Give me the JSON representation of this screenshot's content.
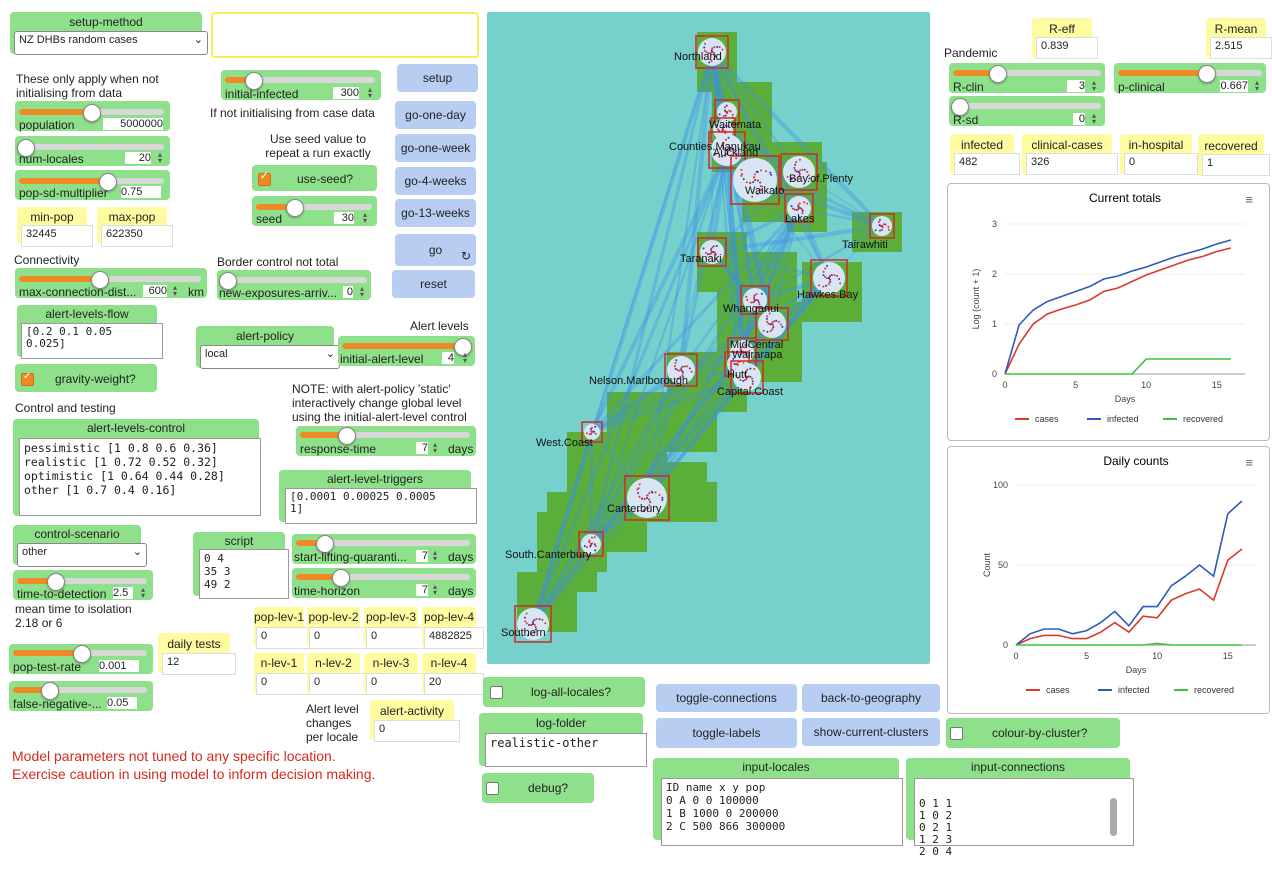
{
  "setup_method": {
    "label": "setup-method",
    "value": "NZ DHBs random cases"
  },
  "note_not_init": "These only apply when not initialising from data",
  "population": {
    "label": "population",
    "value": "5000000"
  },
  "num_locales": {
    "label": "num-locales",
    "value": "20"
  },
  "pop_sd": {
    "label": "pop-sd-multiplier",
    "value": "0.75"
  },
  "min_pop": {
    "label": "min-pop",
    "value": "32445"
  },
  "max_pop": {
    "label": "max-pop",
    "value": "622350"
  },
  "connectivity": "Connectivity",
  "max_conn": {
    "label": "max-connection-dist...",
    "value": "600",
    "unit": "km"
  },
  "alert_levels_flow": {
    "label": "alert-levels-flow",
    "value": "[0.2 0.1 0.05\n0.025]"
  },
  "gravity": {
    "label": "gravity-weight?"
  },
  "control_testing": "Control and testing",
  "alert_levels_control": {
    "label": "alert-levels-control",
    "value": "pessimistic [1 0.8 0.6 0.36]\nrealistic [1 0.72 0.52 0.32]\noptimistic [1 0.64 0.44 0.28]\nother [1 0.7 0.4 0.16]"
  },
  "control_scenario": {
    "label": "control-scenario",
    "value": "other"
  },
  "time_to_detection": {
    "label": "time-to-detection",
    "value": "2.5"
  },
  "mean_time_note": "mean time to isolation 2.18 or 6",
  "pop_test_rate": {
    "label": "pop-test-rate",
    "value": "0.001"
  },
  "false_negative": {
    "label": "false-negative-...",
    "value": "0.05"
  },
  "daily_tests": {
    "label": "daily tests",
    "value": "12"
  },
  "warning1": "Model parameters not tuned to any specific location.",
  "warning2": "Exercise caution in using model to inform decision making.",
  "initial_infected": {
    "label": "initial-infected",
    "value": "300"
  },
  "if_not_init": "If not initialising from case data",
  "seed_note": "Use seed value to repeat a run exactly",
  "use_seed": {
    "label": "use-seed?"
  },
  "seed": {
    "label": "seed",
    "value": "30"
  },
  "border_note": "Border control not total",
  "new_exposures": {
    "label": "new-exposures-arriv...",
    "value": "0"
  },
  "alert_policy": {
    "label": "alert-policy",
    "value": "local"
  },
  "alert_levels_title": "Alert levels",
  "initial_alert": {
    "label": "initial-alert-level",
    "value": "4"
  },
  "note_static": "NOTE: with alert-policy 'static' interactively change global level using the initial-alert-level control",
  "response_time": {
    "label": "response-time",
    "value": "7",
    "unit": "days"
  },
  "alert_level_triggers": {
    "label": "alert-level-triggers",
    "value": "[0.0001 0.00025 0.0005\n1]"
  },
  "script": {
    "label": "script",
    "value": "0 4\n35 3\n49 2"
  },
  "start_lifting": {
    "label": "start-lifting-quaranti...",
    "value": "7",
    "unit": "days"
  },
  "time_horizon": {
    "label": "time-horizon",
    "value": "7",
    "unit": "days"
  },
  "pop_levs": [
    {
      "label": "pop-lev-1",
      "value": "0"
    },
    {
      "label": "pop-lev-2",
      "value": "0"
    },
    {
      "label": "pop-lev-3",
      "value": "0"
    },
    {
      "label": "pop-lev-4",
      "value": "4882825"
    }
  ],
  "n_levs": [
    {
      "label": "n-lev-1",
      "value": "0"
    },
    {
      "label": "n-lev-2",
      "value": "0"
    },
    {
      "label": "n-lev-3",
      "value": "0"
    },
    {
      "label": "n-lev-4",
      "value": "20"
    }
  ],
  "alert_level_note": "Alert level changes per locale",
  "alert_activity": {
    "label": "alert-activity",
    "value": "0"
  },
  "buttons": {
    "setup": "setup",
    "go_one_day": "go-one-day",
    "go_one_week": "go-one-week",
    "go_4_weeks": "go-4-weeks",
    "go_13_weeks": "go-13-weeks",
    "go": "go",
    "reset": "reset",
    "toggle_connections": "toggle-connections",
    "back_to_geography": "back-to-geography",
    "toggle_labels": "toggle-labels",
    "show_current_clusters": "show-current-clusters"
  },
  "log_all_locales": {
    "label": "log-all-locales?"
  },
  "log_folder": {
    "label": "log-folder",
    "value": "realistic-other"
  },
  "debug": {
    "label": "debug?"
  },
  "input_locales": {
    "label": "input-locales",
    "value": "ID name x y pop\n0 A 0 0 100000\n1 B 1000 0 200000\n2 C 500 866 300000"
  },
  "input_connections": {
    "label": "input-connections",
    "value": "0 1 1\n1 0 2\n0 2 1\n1 2 3\n2 0 4"
  },
  "colour_by_cluster": {
    "label": "colour-by-cluster?"
  },
  "map_labels": [
    "Northland",
    "Waitemata",
    "Auckland",
    "Counties.Manukau",
    "Waikato",
    "Bay.of.Plenty",
    "Lakes",
    "Tairawhiti",
    "Taranaki",
    "Hawkes.Bay",
    "Whanganui",
    "MidCentral",
    "Wairarapa",
    "Hutt",
    "Capital.Coast",
    "Nelson.Marlborough",
    "West.Coast",
    "Canterbury",
    "South.Canterbury",
    "Southern"
  ],
  "pandemic": "Pandemic",
  "r_eff": {
    "label": "R-eff",
    "value": "0.839"
  },
  "r_mean": {
    "label": "R-mean",
    "value": "2.515"
  },
  "r_clin": {
    "label": "R-clin",
    "value": "3"
  },
  "p_clinical": {
    "label": "p-clinical",
    "value": "0.667"
  },
  "r_sd": {
    "label": "R-sd",
    "value": "0"
  },
  "infected": {
    "label": "infected",
    "value": "482"
  },
  "clinical_cases": {
    "label": "clinical-cases",
    "value": "326"
  },
  "in_hospital": {
    "label": "in-hospital",
    "value": "0"
  },
  "recovered": {
    "label": "recovered",
    "value": "1"
  },
  "chart_data": [
    {
      "type": "line",
      "title": "Current totals",
      "xlabel": "Days",
      "ylabel": "Log (count + 1)",
      "xlim": [
        0,
        17
      ],
      "ylim": [
        0,
        3
      ],
      "xticks": [
        0,
        5,
        10,
        15
      ],
      "yticks": [
        0,
        1,
        2,
        3
      ],
      "legend": "bottom",
      "series": [
        {
          "name": "cases",
          "color": "#d93a2b",
          "x": [
            0,
            1,
            2,
            3,
            4,
            5,
            6,
            7,
            8,
            9,
            10,
            11,
            12,
            13,
            14,
            15,
            16
          ],
          "y": [
            0,
            0.6,
            1.0,
            1.2,
            1.3,
            1.38,
            1.48,
            1.65,
            1.72,
            1.85,
            1.98,
            2.08,
            2.18,
            2.28,
            2.35,
            2.45,
            2.52
          ]
        },
        {
          "name": "infected",
          "color": "#2d5bb8",
          "x": [
            0,
            1,
            2,
            3,
            4,
            5,
            6,
            7,
            8,
            9,
            10,
            11,
            12,
            13,
            14,
            15,
            16
          ],
          "y": [
            0,
            0.98,
            1.28,
            1.45,
            1.55,
            1.65,
            1.75,
            1.9,
            1.96,
            2.06,
            2.14,
            2.24,
            2.34,
            2.42,
            2.5,
            2.6,
            2.68
          ]
        },
        {
          "name": "recovered",
          "color": "#3cc43c",
          "x": [
            0,
            1,
            2,
            3,
            4,
            5,
            6,
            7,
            8,
            9,
            10,
            11,
            12,
            13,
            14,
            15,
            16
          ],
          "y": [
            0,
            0,
            0,
            0,
            0,
            0,
            0,
            0,
            0,
            0,
            0.3,
            0.3,
            0.3,
            0.3,
            0.3,
            0.3,
            0.3
          ]
        }
      ]
    },
    {
      "type": "line",
      "title": "Daily counts",
      "xlabel": "Days",
      "ylabel": "Count",
      "xlim": [
        0,
        17
      ],
      "ylim": [
        0,
        100
      ],
      "xticks": [
        0,
        5,
        10,
        15
      ],
      "yticks": [
        0,
        50,
        100
      ],
      "legend": "bottom",
      "series": [
        {
          "name": "cases",
          "color": "#d93a2b",
          "x": [
            0,
            1,
            2,
            3,
            4,
            5,
            6,
            7,
            8,
            9,
            10,
            11,
            12,
            13,
            14,
            15,
            16
          ],
          "y": [
            0,
            4,
            6,
            6,
            4,
            4,
            8,
            14,
            8,
            18,
            17,
            28,
            32,
            35,
            28,
            53,
            60
          ]
        },
        {
          "name": "infected",
          "color": "#2d5bb8",
          "x": [
            0,
            1,
            2,
            3,
            4,
            5,
            6,
            7,
            8,
            9,
            10,
            11,
            12,
            13,
            14,
            15,
            16
          ],
          "y": [
            0,
            7,
            10,
            10,
            7,
            9,
            14,
            21,
            12,
            24,
            24,
            37,
            43,
            50,
            43,
            82,
            90
          ]
        },
        {
          "name": "recovered",
          "color": "#3cc43c",
          "x": [
            0,
            1,
            2,
            3,
            4,
            5,
            6,
            7,
            8,
            9,
            10,
            11,
            12,
            13,
            14,
            15,
            16
          ],
          "y": [
            0,
            0,
            0,
            0,
            0,
            0,
            0,
            0,
            0,
            0,
            1,
            0,
            0,
            0,
            0,
            0,
            0
          ]
        }
      ]
    }
  ]
}
